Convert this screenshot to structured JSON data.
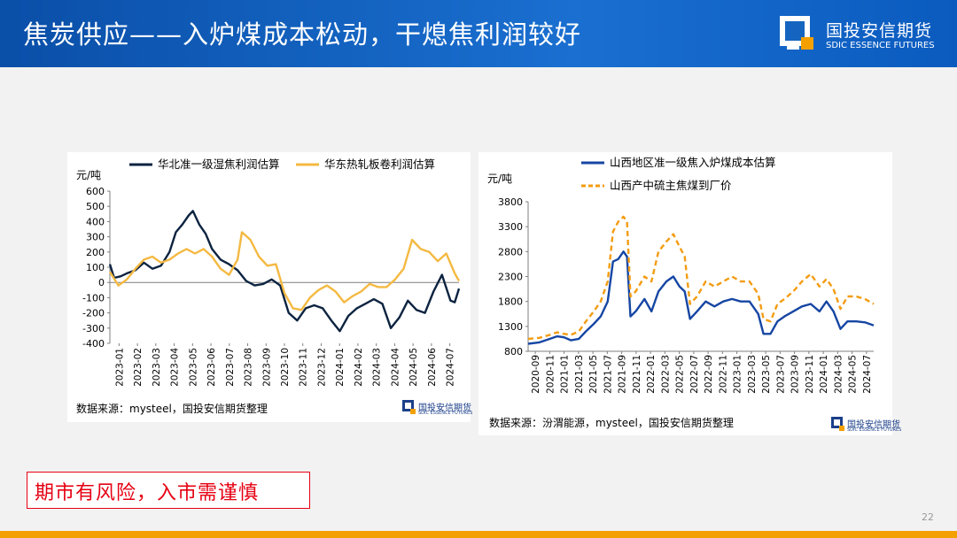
{
  "header": {
    "title": "焦炭供应——入炉煤成本松动，干熄焦利润较好",
    "logo_cn": "国投安信期货",
    "logo_en": "SDIC ESSENCE FUTURES"
  },
  "footer": {
    "warning": "期市有风险，入市需谨慎",
    "page_number": "22"
  },
  "colors": {
    "navy": "#0c2340",
    "gold": "#f4b942",
    "blue": "#1646a3",
    "orange": "#f39c12",
    "header": "#1565c0"
  },
  "chart_data": [
    {
      "type": "line",
      "yunit": "元/吨",
      "ylim": [
        -400,
        600
      ],
      "yticks": [
        600,
        500,
        400,
        300,
        200,
        100,
        0,
        -100,
        -200,
        -300,
        -400
      ],
      "xticks": [
        "2023-01",
        "2023-02",
        "2023-03",
        "2023-04",
        "2023-05",
        "2023-06",
        "2023-07",
        "2023-08",
        "2023-09",
        "2023-10",
        "2023-11",
        "2023-12",
        "2024-01",
        "2024-02",
        "2024-03",
        "2024-04",
        "2024-05",
        "2024-06",
        "2024-07"
      ],
      "x_start": 2023.0,
      "x_end": 2024.64,
      "source": "数据来源：mysteel，国投安信期货整理",
      "series": [
        {
          "name": "华北准一级湿焦利润估算",
          "color": "#0c2340",
          "dash": false,
          "points": [
            [
              2023.0,
              120
            ],
            [
              2023.02,
              30
            ],
            [
              2023.05,
              40
            ],
            [
              2023.08,
              60
            ],
            [
              2023.12,
              80
            ],
            [
              2023.16,
              130
            ],
            [
              2023.2,
              90
            ],
            [
              2023.24,
              110
            ],
            [
              2023.28,
              200
            ],
            [
              2023.31,
              330
            ],
            [
              2023.34,
              380
            ],
            [
              2023.37,
              440
            ],
            [
              2023.39,
              470
            ],
            [
              2023.42,
              380
            ],
            [
              2023.45,
              320
            ],
            [
              2023.48,
              220
            ],
            [
              2023.52,
              150
            ],
            [
              2023.56,
              120
            ],
            [
              2023.6,
              80
            ],
            [
              2023.64,
              10
            ],
            [
              2023.68,
              -20
            ],
            [
              2023.72,
              -10
            ],
            [
              2023.76,
              20
            ],
            [
              2023.8,
              -20
            ],
            [
              2023.84,
              -200
            ],
            [
              2023.88,
              -250
            ],
            [
              2023.92,
              -170
            ],
            [
              2023.96,
              -150
            ],
            [
              2024.0,
              -170
            ],
            [
              2024.04,
              -250
            ],
            [
              2024.08,
              -320
            ],
            [
              2024.12,
              -220
            ],
            [
              2024.16,
              -170
            ],
            [
              2024.2,
              -140
            ],
            [
              2024.24,
              -110
            ],
            [
              2024.28,
              -140
            ],
            [
              2024.32,
              -300
            ],
            [
              2024.36,
              -230
            ],
            [
              2024.4,
              -120
            ],
            [
              2024.44,
              -180
            ],
            [
              2024.48,
              -200
            ],
            [
              2024.52,
              -60
            ],
            [
              2024.56,
              50
            ],
            [
              2024.6,
              -120
            ],
            [
              2024.62,
              -130
            ],
            [
              2024.64,
              -40
            ]
          ]
        },
        {
          "name": "华东热轧板卷利润估算",
          "color": "#f4b942",
          "dash": false,
          "points": [
            [
              2023.0,
              70
            ],
            [
              2023.04,
              -20
            ],
            [
              2023.08,
              20
            ],
            [
              2023.12,
              90
            ],
            [
              2023.16,
              150
            ],
            [
              2023.2,
              170
            ],
            [
              2023.24,
              130
            ],
            [
              2023.28,
              150
            ],
            [
              2023.32,
              190
            ],
            [
              2023.36,
              220
            ],
            [
              2023.4,
              190
            ],
            [
              2023.44,
              220
            ],
            [
              2023.48,
              170
            ],
            [
              2023.52,
              90
            ],
            [
              2023.56,
              50
            ],
            [
              2023.6,
              150
            ],
            [
              2023.62,
              330
            ],
            [
              2023.66,
              280
            ],
            [
              2023.7,
              170
            ],
            [
              2023.74,
              110
            ],
            [
              2023.78,
              120
            ],
            [
              2023.82,
              -70
            ],
            [
              2023.86,
              -170
            ],
            [
              2023.9,
              -180
            ],
            [
              2023.94,
              -100
            ],
            [
              2023.98,
              -50
            ],
            [
              2024.02,
              -20
            ],
            [
              2024.06,
              -60
            ],
            [
              2024.1,
              -130
            ],
            [
              2024.14,
              -90
            ],
            [
              2024.18,
              -60
            ],
            [
              2024.22,
              -10
            ],
            [
              2024.26,
              -30
            ],
            [
              2024.3,
              -30
            ],
            [
              2024.34,
              20
            ],
            [
              2024.38,
              90
            ],
            [
              2024.42,
              280
            ],
            [
              2024.46,
              220
            ],
            [
              2024.5,
              200
            ],
            [
              2024.54,
              140
            ],
            [
              2024.58,
              190
            ],
            [
              2024.62,
              60
            ],
            [
              2024.64,
              10
            ]
          ]
        }
      ]
    },
    {
      "type": "line",
      "yunit": "元/吨",
      "ylim": [
        800,
        3800
      ],
      "yticks": [
        3800,
        3300,
        2800,
        2300,
        1800,
        1300,
        800
      ],
      "xticks": [
        "2020-09",
        "2020-11",
        "2021-01",
        "2021-03",
        "2021-05",
        "2021-07",
        "2021-09",
        "2021-11",
        "2022-01",
        "2022-03",
        "2022-05",
        "2022-07",
        "2022-09",
        "2022-11",
        "2023-01",
        "2023-03",
        "2023-05",
        "2023-07",
        "2023-09",
        "2023-11",
        "2024-01",
        "2024-03",
        "2024-05",
        "2024-07"
      ],
      "x_start": 2020.67,
      "x_end": 2024.62,
      "source": "数据来源：汾渭能源，mysteel，国投安信期货整理",
      "series": [
        {
          "name": "山西地区准一级焦入炉煤成本估算",
          "color": "#1646a3",
          "dash": false,
          "points": [
            [
              2020.67,
              950
            ],
            [
              2020.8,
              980
            ],
            [
              2020.92,
              1050
            ],
            [
              2021.0,
              1100
            ],
            [
              2021.08,
              1080
            ],
            [
              2021.16,
              1020
            ],
            [
              2021.25,
              1050
            ],
            [
              2021.33,
              1200
            ],
            [
              2021.42,
              1350
            ],
            [
              2021.5,
              1500
            ],
            [
              2021.58,
              1800
            ],
            [
              2021.64,
              2600
            ],
            [
              2021.7,
              2650
            ],
            [
              2021.76,
              2800
            ],
            [
              2021.8,
              2700
            ],
            [
              2021.84,
              1500
            ],
            [
              2021.9,
              1600
            ],
            [
              2022.0,
              1850
            ],
            [
              2022.08,
              1600
            ],
            [
              2022.16,
              2000
            ],
            [
              2022.25,
              2200
            ],
            [
              2022.33,
              2300
            ],
            [
              2022.4,
              2100
            ],
            [
              2022.46,
              2000
            ],
            [
              2022.52,
              1450
            ],
            [
              2022.6,
              1600
            ],
            [
              2022.7,
              1800
            ],
            [
              2022.8,
              1700
            ],
            [
              2022.9,
              1800
            ],
            [
              2023.0,
              1850
            ],
            [
              2023.1,
              1800
            ],
            [
              2023.2,
              1800
            ],
            [
              2023.3,
              1550
            ],
            [
              2023.36,
              1150
            ],
            [
              2023.44,
              1150
            ],
            [
              2023.52,
              1400
            ],
            [
              2023.6,
              1500
            ],
            [
              2023.7,
              1600
            ],
            [
              2023.8,
              1700
            ],
            [
              2023.9,
              1750
            ],
            [
              2024.0,
              1600
            ],
            [
              2024.08,
              1800
            ],
            [
              2024.16,
              1600
            ],
            [
              2024.24,
              1250
            ],
            [
              2024.32,
              1400
            ],
            [
              2024.42,
              1400
            ],
            [
              2024.52,
              1380
            ],
            [
              2024.62,
              1320
            ]
          ]
        },
        {
          "name": "山西产中硫主焦煤到厂价",
          "color": "#f39c12",
          "dash": true,
          "points": [
            [
              2020.67,
              1050
            ],
            [
              2020.8,
              1070
            ],
            [
              2020.92,
              1130
            ],
            [
              2021.0,
              1180
            ],
            [
              2021.08,
              1150
            ],
            [
              2021.16,
              1130
            ],
            [
              2021.25,
              1200
            ],
            [
              2021.33,
              1400
            ],
            [
              2021.42,
              1600
            ],
            [
              2021.5,
              1800
            ],
            [
              2021.58,
              2200
            ],
            [
              2021.64,
              3200
            ],
            [
              2021.7,
              3400
            ],
            [
              2021.76,
              3500
            ],
            [
              2021.8,
              3400
            ],
            [
              2021.84,
              1900
            ],
            [
              2021.9,
              2000
            ],
            [
              2022.0,
              2300
            ],
            [
              2022.08,
              2200
            ],
            [
              2022.16,
              2800
            ],
            [
              2022.25,
              3000
            ],
            [
              2022.33,
              3150
            ],
            [
              2022.4,
              2900
            ],
            [
              2022.46,
              2700
            ],
            [
              2022.52,
              1750
            ],
            [
              2022.6,
              1900
            ],
            [
              2022.7,
              2200
            ],
            [
              2022.8,
              2100
            ],
            [
              2022.9,
              2200
            ],
            [
              2023.0,
              2300
            ],
            [
              2023.1,
              2200
            ],
            [
              2023.2,
              2200
            ],
            [
              2023.3,
              1950
            ],
            [
              2023.36,
              1450
            ],
            [
              2023.44,
              1400
            ],
            [
              2023.52,
              1750
            ],
            [
              2023.6,
              1850
            ],
            [
              2023.7,
              2000
            ],
            [
              2023.8,
              2200
            ],
            [
              2023.9,
              2350
            ],
            [
              2024.0,
              2100
            ],
            [
              2024.08,
              2250
            ],
            [
              2024.16,
              2050
            ],
            [
              2024.24,
              1650
            ],
            [
              2024.32,
              1900
            ],
            [
              2024.42,
              1900
            ],
            [
              2024.52,
              1850
            ],
            [
              2024.62,
              1750
            ]
          ]
        }
      ]
    }
  ]
}
